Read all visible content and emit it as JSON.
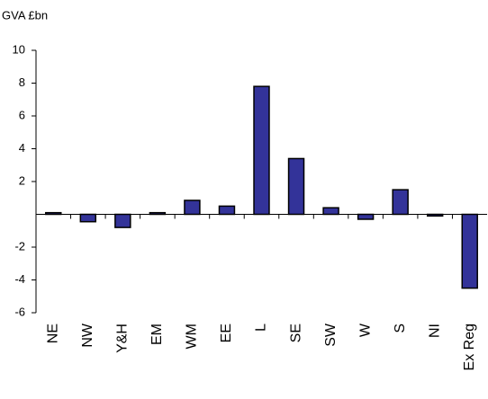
{
  "chart_data": {
    "type": "bar",
    "y_label": "GVA £bn",
    "categories": [
      "NE",
      "NW",
      "Y&H",
      "EM",
      "WM",
      "EE",
      "L",
      "SE",
      "SW",
      "W",
      "S",
      "NI",
      "Ex Reg"
    ],
    "values": [
      0.1,
      -0.45,
      -0.8,
      0.1,
      0.85,
      0.5,
      7.8,
      3.4,
      0.4,
      -0.3,
      1.5,
      -0.1,
      -4.5
    ],
    "color": "#333399",
    "ylim": [
      -6,
      10
    ],
    "yticks": [
      -6,
      -4,
      -2,
      2,
      4,
      6,
      8,
      10
    ],
    "grid": false
  }
}
